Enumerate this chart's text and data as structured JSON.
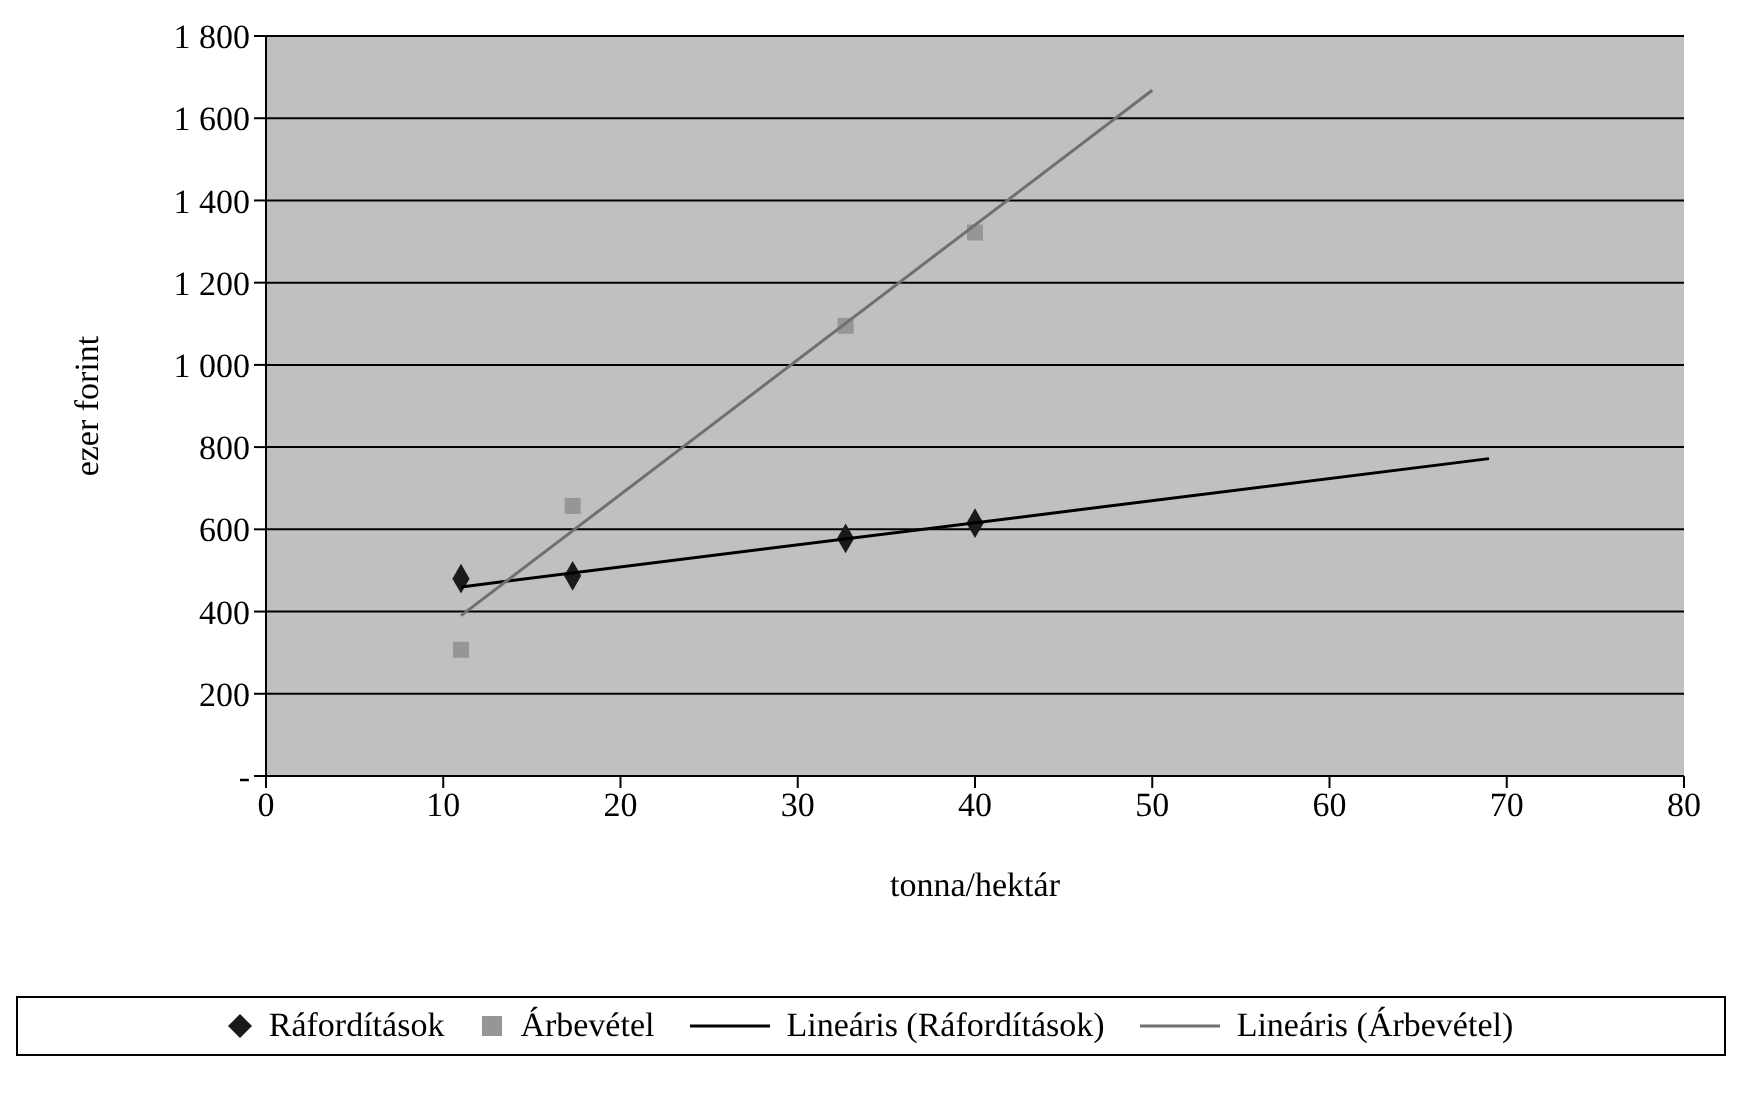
{
  "chart_data": {
    "type": "scatter",
    "xlabel": "tonna/hektár",
    "ylabel": "ezer forint",
    "xlim": [
      0,
      80
    ],
    "xticks": [
      0,
      10,
      20,
      30,
      40,
      50,
      60,
      70,
      80
    ],
    "ylim": [
      0,
      1800
    ],
    "yticks": [
      {
        "value": 0,
        "label": "-"
      },
      200,
      400,
      600,
      800,
      {
        "value": 1000,
        "label": "1 000"
      },
      {
        "value": 1200,
        "label": "1 200"
      },
      {
        "value": 1400,
        "label": "1 400"
      },
      {
        "value": 1600,
        "label": "1 600"
      },
      {
        "value": 1800,
        "label": "1 800"
      }
    ],
    "grid": "y",
    "legend": "bottom",
    "series": [
      {
        "name": "Ráfordítások",
        "type": "scatter",
        "marker": "diamond",
        "color": "#1a1a1a",
        "x": [
          11,
          17.3,
          32.7,
          40
        ],
        "values": [
          480,
          487,
          578,
          615
        ]
      },
      {
        "name": "Árbevétel",
        "type": "scatter",
        "marker": "square",
        "color": "#969696",
        "x": [
          11,
          17.3,
          32.7,
          40
        ],
        "values": [
          307,
          657,
          1095,
          1322
        ]
      },
      {
        "name": "Lineáris (Ráfordítások)",
        "type": "line",
        "marker": "none",
        "color": "#000000",
        "x": [
          11,
          69
        ],
        "values": [
          460,
          772
        ]
      },
      {
        "name": "Lineáris (Árbevétel)",
        "type": "line",
        "marker": "none",
        "color": "#707070",
        "x": [
          11,
          50
        ],
        "values": [
          390,
          1668
        ]
      }
    ]
  }
}
